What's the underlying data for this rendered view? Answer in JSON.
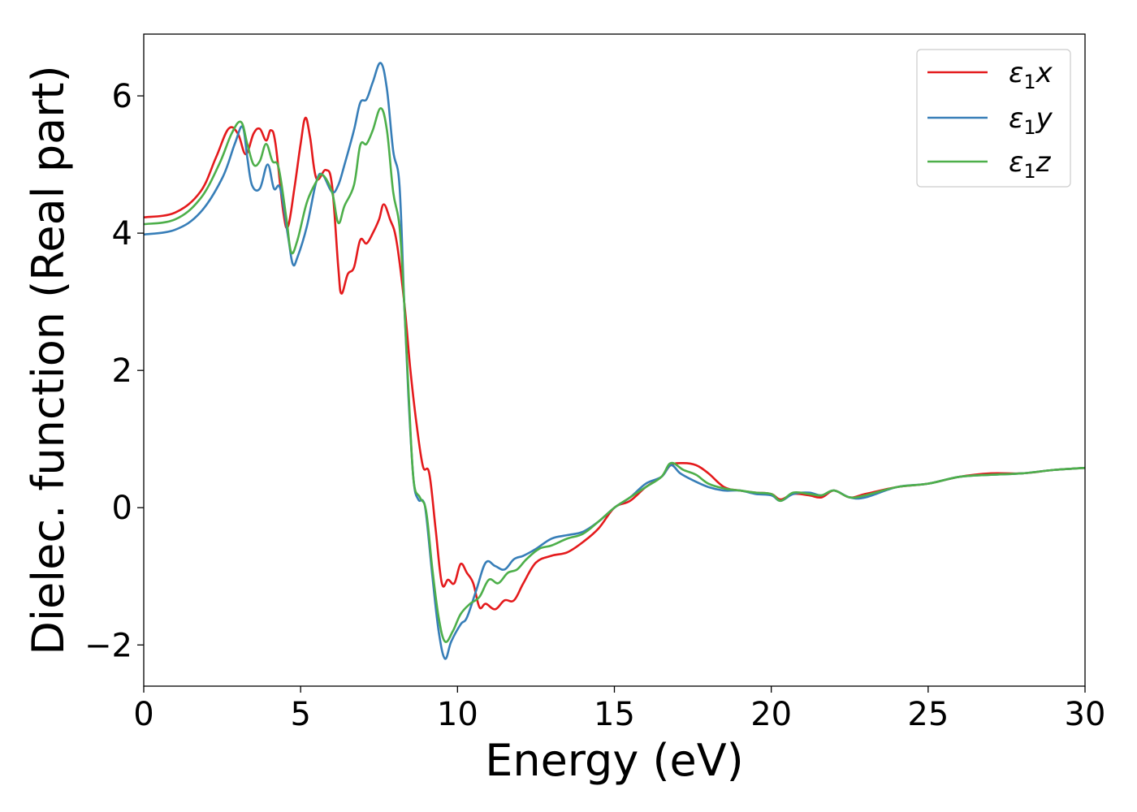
{
  "chart_data": {
    "type": "line",
    "xlabel": "Energy (eV)",
    "ylabel": "Dielec. function (Real part)",
    "xlim": [
      0,
      30
    ],
    "ylim": [
      -2.6,
      6.9
    ],
    "xticks": [
      0,
      5,
      10,
      15,
      20,
      25,
      30
    ],
    "yticks": [
      -2,
      0,
      2,
      4,
      6
    ],
    "xtick_labels": [
      "0",
      "5",
      "10",
      "15",
      "20",
      "25",
      "30"
    ],
    "ytick_labels": [
      "−2",
      "0",
      "2",
      "4",
      "6"
    ],
    "grid": false,
    "legend_position": "top-right",
    "series": [
      {
        "name": "ε₁x",
        "legend": {
          "symbol": "ε",
          "sub": "1",
          "suffix": "x"
        },
        "color": "#e41a1c",
        "points": [
          [
            0,
            4.23
          ],
          [
            1.0,
            4.3
          ],
          [
            1.8,
            4.6
          ],
          [
            2.3,
            5.1
          ],
          [
            2.7,
            5.52
          ],
          [
            3.0,
            5.45
          ],
          [
            3.25,
            5.15
          ],
          [
            3.5,
            5.45
          ],
          [
            3.7,
            5.52
          ],
          [
            3.9,
            5.35
          ],
          [
            4.05,
            5.5
          ],
          [
            4.2,
            5.3
          ],
          [
            4.45,
            4.3
          ],
          [
            4.6,
            4.1
          ],
          [
            4.8,
            4.65
          ],
          [
            5.0,
            5.3
          ],
          [
            5.15,
            5.68
          ],
          [
            5.3,
            5.4
          ],
          [
            5.5,
            4.8
          ],
          [
            5.8,
            4.92
          ],
          [
            6.0,
            4.7
          ],
          [
            6.2,
            3.5
          ],
          [
            6.3,
            3.12
          ],
          [
            6.5,
            3.4
          ],
          [
            6.7,
            3.5
          ],
          [
            6.9,
            3.9
          ],
          [
            7.1,
            3.85
          ],
          [
            7.3,
            4.0
          ],
          [
            7.5,
            4.2
          ],
          [
            7.65,
            4.42
          ],
          [
            7.85,
            4.2
          ],
          [
            8.05,
            3.9
          ],
          [
            8.3,
            3.0
          ],
          [
            8.5,
            2.0
          ],
          [
            8.7,
            1.2
          ],
          [
            8.9,
            0.6
          ],
          [
            9.1,
            0.5
          ],
          [
            9.3,
            -0.3
          ],
          [
            9.5,
            -1.1
          ],
          [
            9.7,
            -1.05
          ],
          [
            9.9,
            -1.1
          ],
          [
            10.1,
            -0.82
          ],
          [
            10.3,
            -0.95
          ],
          [
            10.5,
            -1.1
          ],
          [
            10.7,
            -1.45
          ],
          [
            10.9,
            -1.4
          ],
          [
            11.2,
            -1.48
          ],
          [
            11.5,
            -1.35
          ],
          [
            11.8,
            -1.35
          ],
          [
            12.1,
            -1.1
          ],
          [
            12.5,
            -0.8
          ],
          [
            13.0,
            -0.7
          ],
          [
            13.5,
            -0.65
          ],
          [
            14.0,
            -0.5
          ],
          [
            14.5,
            -0.3
          ],
          [
            15.0,
            0.0
          ],
          [
            15.5,
            0.1
          ],
          [
            16.0,
            0.3
          ],
          [
            16.5,
            0.45
          ],
          [
            16.8,
            0.62
          ],
          [
            17.2,
            0.65
          ],
          [
            17.6,
            0.62
          ],
          [
            18.0,
            0.5
          ],
          [
            18.5,
            0.3
          ],
          [
            19.0,
            0.25
          ],
          [
            19.5,
            0.22
          ],
          [
            20.0,
            0.2
          ],
          [
            20.3,
            0.12
          ],
          [
            20.7,
            0.2
          ],
          [
            21.2,
            0.18
          ],
          [
            21.6,
            0.15
          ],
          [
            22.0,
            0.25
          ],
          [
            22.5,
            0.15
          ],
          [
            23.0,
            0.2
          ],
          [
            24.0,
            0.3
          ],
          [
            25.0,
            0.35
          ],
          [
            26.0,
            0.45
          ],
          [
            27.0,
            0.5
          ],
          [
            28.0,
            0.5
          ],
          [
            29.0,
            0.55
          ],
          [
            30.0,
            0.58
          ]
        ]
      },
      {
        "name": "ε₁y",
        "legend": {
          "symbol": "ε",
          "sub": "1",
          "suffix": "y"
        },
        "color": "#377eb8",
        "points": [
          [
            0,
            3.98
          ],
          [
            1.0,
            4.05
          ],
          [
            1.8,
            4.3
          ],
          [
            2.5,
            4.8
          ],
          [
            2.9,
            5.3
          ],
          [
            3.15,
            5.55
          ],
          [
            3.3,
            5.1
          ],
          [
            3.45,
            4.7
          ],
          [
            3.7,
            4.65
          ],
          [
            3.95,
            5.0
          ],
          [
            4.15,
            4.65
          ],
          [
            4.35,
            4.65
          ],
          [
            4.6,
            3.95
          ],
          [
            4.75,
            3.55
          ],
          [
            4.9,
            3.65
          ],
          [
            5.2,
            4.1
          ],
          [
            5.5,
            4.75
          ],
          [
            5.7,
            4.85
          ],
          [
            6.0,
            4.6
          ],
          [
            6.2,
            4.7
          ],
          [
            6.4,
            5.0
          ],
          [
            6.7,
            5.5
          ],
          [
            6.9,
            5.9
          ],
          [
            7.1,
            5.95
          ],
          [
            7.3,
            6.2
          ],
          [
            7.55,
            6.48
          ],
          [
            7.75,
            6.1
          ],
          [
            7.95,
            5.2
          ],
          [
            8.15,
            4.7
          ],
          [
            8.3,
            3.0
          ],
          [
            8.45,
            1.5
          ],
          [
            8.6,
            0.4
          ],
          [
            8.75,
            0.12
          ],
          [
            8.9,
            0.1
          ],
          [
            9.0,
            -0.1
          ],
          [
            9.2,
            -1.0
          ],
          [
            9.4,
            -1.8
          ],
          [
            9.6,
            -2.2
          ],
          [
            9.8,
            -1.95
          ],
          [
            10.1,
            -1.7
          ],
          [
            10.3,
            -1.6
          ],
          [
            10.6,
            -1.2
          ],
          [
            10.9,
            -0.8
          ],
          [
            11.2,
            -0.85
          ],
          [
            11.5,
            -0.9
          ],
          [
            11.8,
            -0.75
          ],
          [
            12.1,
            -0.7
          ],
          [
            12.5,
            -0.6
          ],
          [
            13.0,
            -0.45
          ],
          [
            13.5,
            -0.4
          ],
          [
            14.0,
            -0.35
          ],
          [
            14.5,
            -0.2
          ],
          [
            15.0,
            0.0
          ],
          [
            15.5,
            0.15
          ],
          [
            16.0,
            0.35
          ],
          [
            16.5,
            0.45
          ],
          [
            16.8,
            0.62
          ],
          [
            17.1,
            0.5
          ],
          [
            17.5,
            0.4
          ],
          [
            18.0,
            0.3
          ],
          [
            18.5,
            0.25
          ],
          [
            19.0,
            0.25
          ],
          [
            19.5,
            0.2
          ],
          [
            20.0,
            0.18
          ],
          [
            20.3,
            0.1
          ],
          [
            20.7,
            0.2
          ],
          [
            21.2,
            0.22
          ],
          [
            21.6,
            0.18
          ],
          [
            22.0,
            0.25
          ],
          [
            22.5,
            0.15
          ],
          [
            23.0,
            0.15
          ],
          [
            24.0,
            0.3
          ],
          [
            25.0,
            0.35
          ],
          [
            26.0,
            0.45
          ],
          [
            27.0,
            0.48
          ],
          [
            28.0,
            0.5
          ],
          [
            29.0,
            0.55
          ],
          [
            30.0,
            0.58
          ]
        ]
      },
      {
        "name": "ε₁z",
        "legend": {
          "symbol": "ε",
          "sub": "1",
          "suffix": "z"
        },
        "color": "#4daf4a",
        "points": [
          [
            0,
            4.13
          ],
          [
            1.0,
            4.2
          ],
          [
            1.8,
            4.5
          ],
          [
            2.4,
            5.0
          ],
          [
            2.8,
            5.45
          ],
          [
            3.1,
            5.62
          ],
          [
            3.3,
            5.3
          ],
          [
            3.5,
            5.0
          ],
          [
            3.7,
            5.05
          ],
          [
            3.9,
            5.3
          ],
          [
            4.1,
            5.05
          ],
          [
            4.3,
            4.95
          ],
          [
            4.55,
            4.2
          ],
          [
            4.7,
            3.72
          ],
          [
            4.9,
            3.9
          ],
          [
            5.2,
            4.45
          ],
          [
            5.5,
            4.75
          ],
          [
            5.7,
            4.85
          ],
          [
            6.0,
            4.6
          ],
          [
            6.2,
            4.15
          ],
          [
            6.4,
            4.4
          ],
          [
            6.7,
            4.7
          ],
          [
            6.9,
            5.28
          ],
          [
            7.1,
            5.3
          ],
          [
            7.3,
            5.5
          ],
          [
            7.55,
            5.82
          ],
          [
            7.75,
            5.5
          ],
          [
            7.95,
            4.6
          ],
          [
            8.15,
            4.1
          ],
          [
            8.3,
            3.0
          ],
          [
            8.45,
            1.6
          ],
          [
            8.6,
            0.4
          ],
          [
            8.8,
            0.15
          ],
          [
            9.0,
            -0.05
          ],
          [
            9.2,
            -0.9
          ],
          [
            9.4,
            -1.6
          ],
          [
            9.6,
            -1.95
          ],
          [
            9.85,
            -1.8
          ],
          [
            10.1,
            -1.55
          ],
          [
            10.4,
            -1.4
          ],
          [
            10.7,
            -1.3
          ],
          [
            11.0,
            -1.05
          ],
          [
            11.3,
            -1.1
          ],
          [
            11.6,
            -0.95
          ],
          [
            11.9,
            -0.9
          ],
          [
            12.2,
            -0.75
          ],
          [
            12.6,
            -0.6
          ],
          [
            13.0,
            -0.55
          ],
          [
            13.5,
            -0.45
          ],
          [
            14.0,
            -0.38
          ],
          [
            14.5,
            -0.2
          ],
          [
            15.0,
            0.0
          ],
          [
            15.5,
            0.15
          ],
          [
            16.0,
            0.3
          ],
          [
            16.5,
            0.45
          ],
          [
            16.8,
            0.65
          ],
          [
            17.2,
            0.55
          ],
          [
            17.6,
            0.48
          ],
          [
            18.0,
            0.35
          ],
          [
            18.5,
            0.28
          ],
          [
            19.0,
            0.25
          ],
          [
            19.5,
            0.22
          ],
          [
            20.0,
            0.2
          ],
          [
            20.3,
            0.1
          ],
          [
            20.7,
            0.22
          ],
          [
            21.2,
            0.2
          ],
          [
            21.6,
            0.18
          ],
          [
            22.0,
            0.25
          ],
          [
            22.5,
            0.15
          ],
          [
            23.0,
            0.18
          ],
          [
            24.0,
            0.3
          ],
          [
            25.0,
            0.35
          ],
          [
            26.0,
            0.45
          ],
          [
            27.0,
            0.48
          ],
          [
            28.0,
            0.5
          ],
          [
            29.0,
            0.55
          ],
          [
            30.0,
            0.58
          ]
        ]
      }
    ]
  }
}
